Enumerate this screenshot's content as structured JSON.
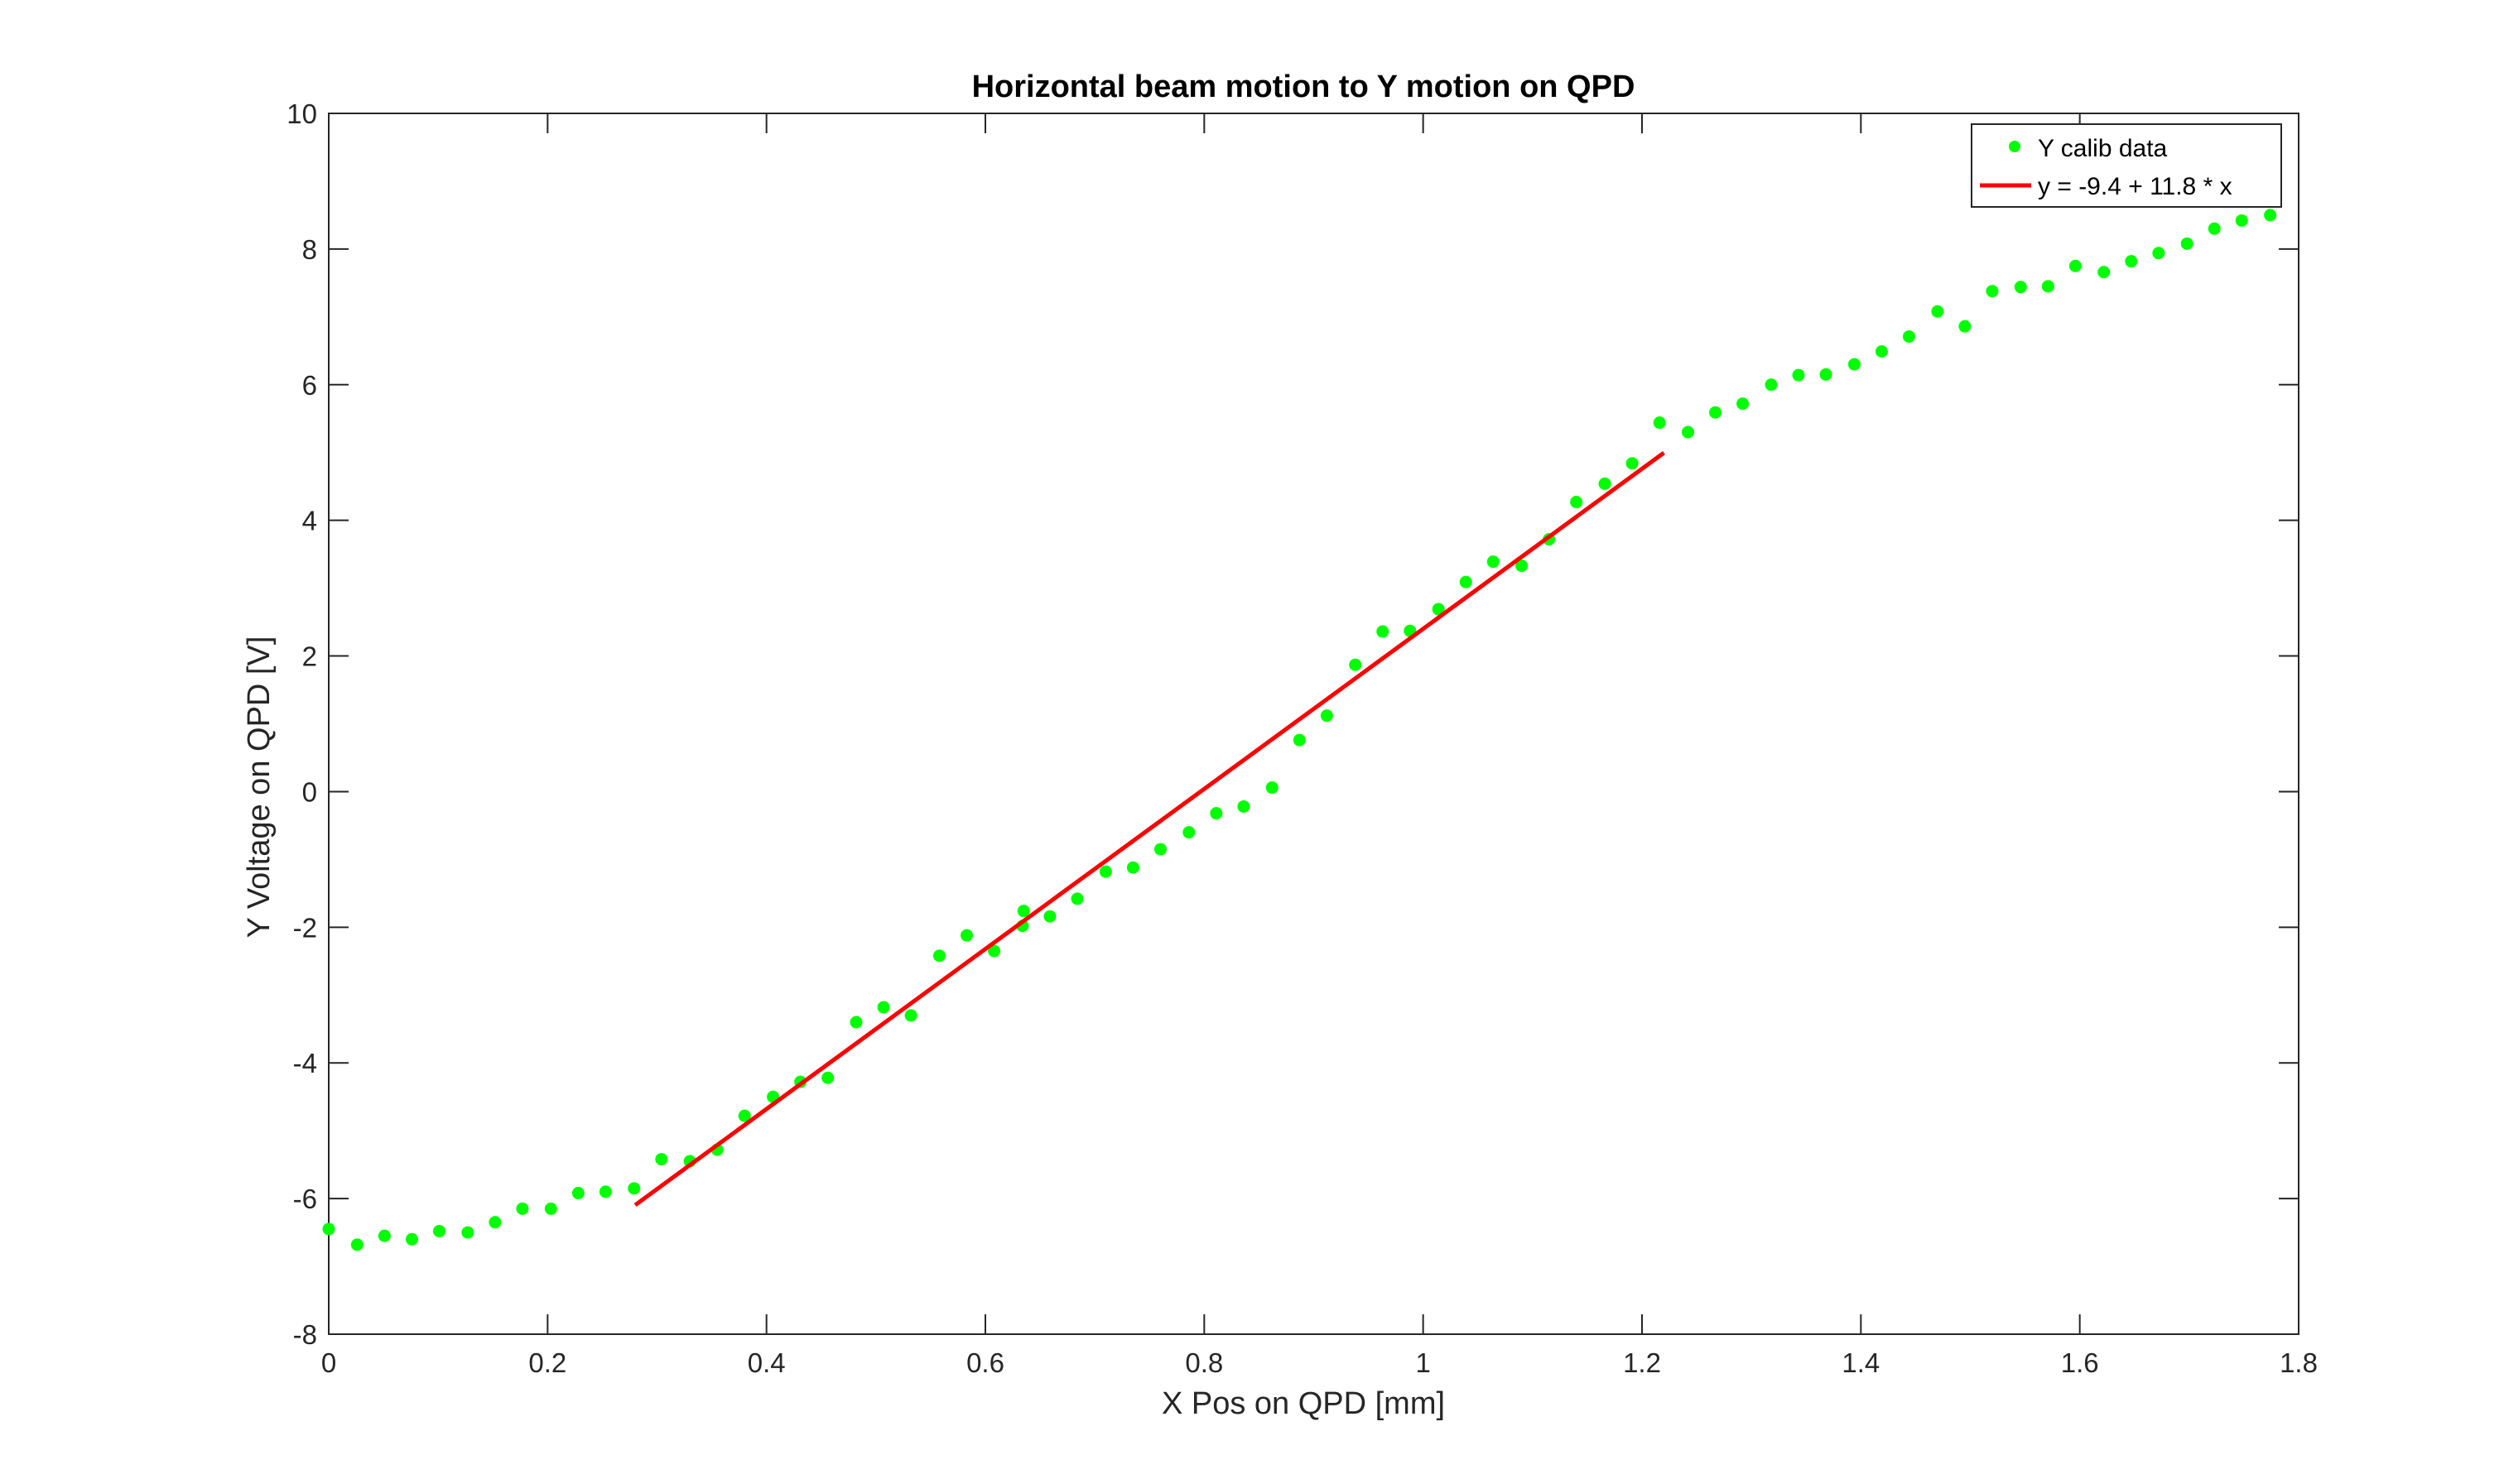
{
  "chart_data": {
    "type": "scatter",
    "title": "Horizontal beam motion to Y motion on QPD",
    "xlabel": "X Pos on QPD [mm]",
    "ylabel": "Y Voltage on QPD [V]",
    "xlim": [
      0,
      1.8
    ],
    "ylim": [
      -8,
      10
    ],
    "xticks": [
      0,
      0.2,
      0.4,
      0.6,
      0.8,
      1,
      1.2,
      1.4,
      1.6,
      1.8
    ],
    "xtick_labels": [
      "0",
      "0.2",
      "0.4",
      "0.6",
      "0.8",
      "1",
      "1.2",
      "1.4",
      "1.6",
      "1.8"
    ],
    "yticks": [
      -8,
      -6,
      -4,
      -2,
      0,
      2,
      4,
      6,
      8,
      10
    ],
    "ytick_labels": [
      "-8",
      "-6",
      "-4",
      "-2",
      "0",
      "2",
      "4",
      "6",
      "8",
      "10"
    ],
    "grid": false,
    "legend_position": "top-right",
    "series": [
      {
        "name": "Y calib data",
        "style": "markers",
        "color": "#00ff00",
        "x": [
          0.0,
          0.026,
          0.051,
          0.076,
          0.101,
          0.127,
          0.152,
          0.177,
          0.203,
          0.228,
          0.253,
          0.279,
          0.304,
          0.33,
          0.355,
          0.38,
          0.406,
          0.431,
          0.456,
          0.482,
          0.507,
          0.532,
          0.558,
          0.583,
          0.608,
          0.634,
          0.635,
          0.659,
          0.684,
          0.71,
          0.735,
          0.76,
          0.786,
          0.811,
          0.836,
          0.862,
          0.887,
          0.912,
          0.938,
          0.963,
          0.988,
          1.014,
          1.039,
          1.064,
          1.09,
          1.115,
          1.14,
          1.166,
          1.191,
          1.216,
          1.242,
          1.267,
          1.292,
          1.318,
          1.343,
          1.368,
          1.394,
          1.419,
          1.444,
          1.47,
          1.495,
          1.52,
          1.546,
          1.571,
          1.596,
          1.622,
          1.647,
          1.672,
          1.698,
          1.723,
          1.748,
          1.774
        ],
        "y": [
          -6.45,
          -6.68,
          -6.55,
          -6.6,
          -6.48,
          -6.5,
          -6.35,
          -6.15,
          -6.15,
          -5.92,
          -5.9,
          -5.85,
          -5.42,
          -5.45,
          -5.28,
          -4.78,
          -4.5,
          -4.28,
          -4.22,
          -3.4,
          -3.18,
          -3.3,
          -2.42,
          -2.12,
          -2.35,
          -1.98,
          -1.76,
          -1.84,
          -1.58,
          -1.18,
          -1.12,
          -0.85,
          -0.6,
          -0.32,
          -0.22,
          0.06,
          0.76,
          1.12,
          1.87,
          2.36,
          2.37,
          2.69,
          3.09,
          3.39,
          3.33,
          3.72,
          4.27,
          4.54,
          4.84,
          5.44,
          5.3,
          5.59,
          5.72,
          6.0,
          6.14,
          6.15,
          6.3,
          6.49,
          6.71,
          7.08,
          6.86,
          7.38,
          7.44,
          7.45,
          7.75,
          7.66,
          7.82,
          7.94,
          8.08,
          8.3,
          8.42,
          8.5
        ]
      },
      {
        "name": "y = -9.4 + 11.8 * x",
        "style": "line",
        "color": "#ff0000",
        "x": [
          0.28,
          1.22
        ],
        "y": [
          -6.096,
          4.996
        ]
      }
    ]
  }
}
